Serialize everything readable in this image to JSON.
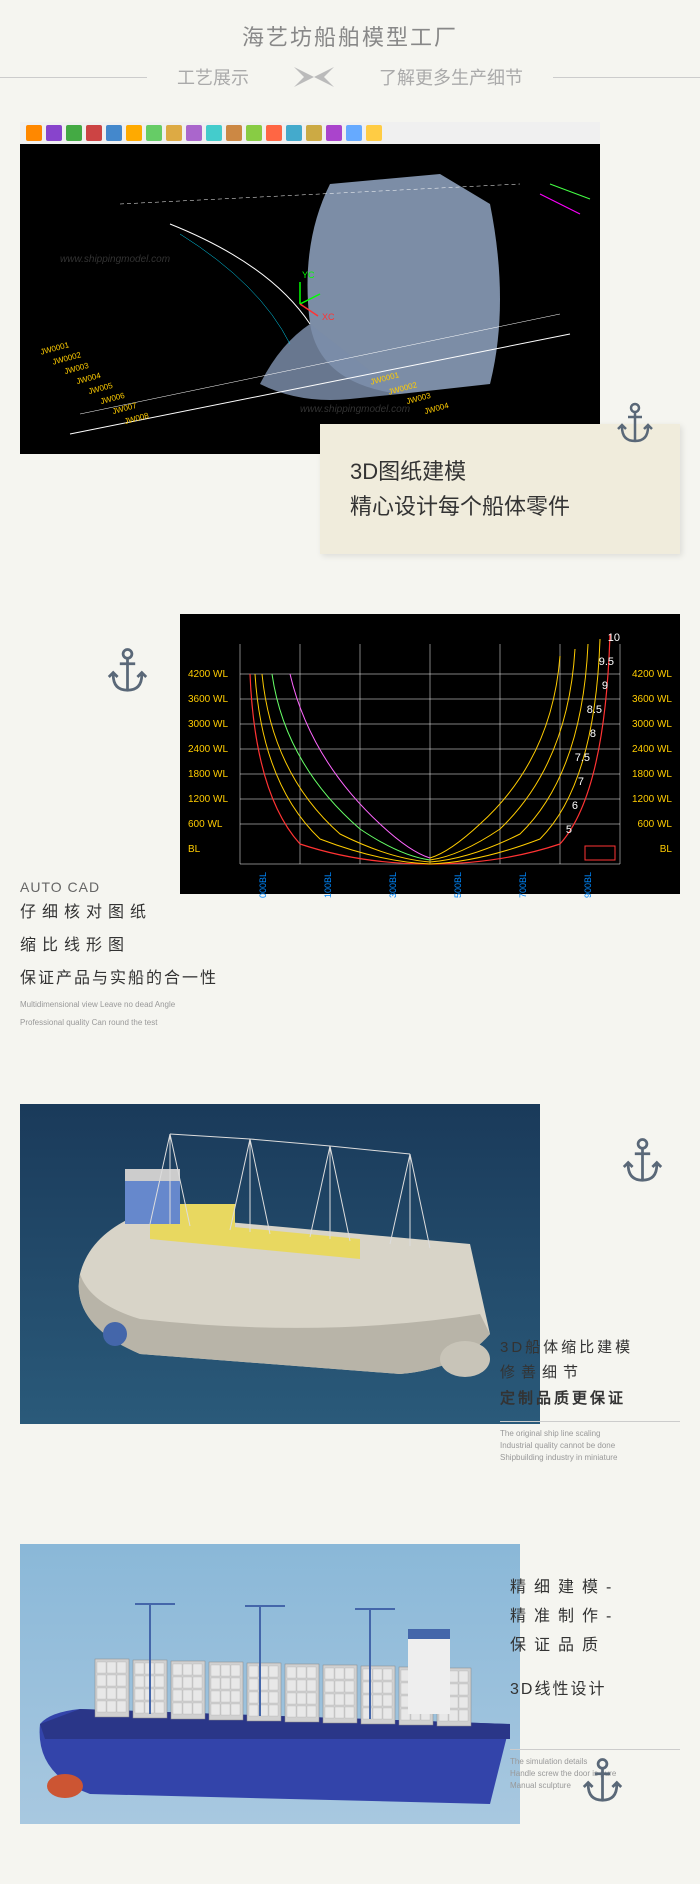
{
  "header": {
    "title": "海艺坊船舶模型工厂",
    "left": "工艺展示",
    "right": "了解更多生产细节"
  },
  "section1": {
    "toolbar_colors": [
      "#ff8800",
      "#8844cc",
      "#44aa44",
      "#cc4444",
      "#4488cc",
      "#ffaa00",
      "#66cc66",
      "#ddaa44",
      "#aa66cc",
      "#44cccc",
      "#cc8844",
      "#88cc44",
      "#ff6644",
      "#44aacc",
      "#ccaa44",
      "#aa44cc",
      "#66aaff",
      "#ffcc44"
    ],
    "watermark": "www.shippingmodel.com",
    "axis_labels": {
      "x": "XC",
      "y": "YC"
    },
    "station_labels": [
      "JW0001",
      "JW0002",
      "JW003",
      "JW004",
      "JW005",
      "JW006",
      "JW007",
      "JW008"
    ],
    "hull_color": "#8a9cb8",
    "card_line1": "3D图纸建模",
    "card_line2": "精心设计每个船体零件"
  },
  "section2": {
    "y_labels": [
      "4200 WL",
      "3600 WL",
      "3000 WL",
      "2400 WL",
      "1800 WL",
      "1200 WL",
      "600 WL",
      "BL"
    ],
    "x_labels": [
      "000BL",
      "100BL",
      "300BL",
      "500BL",
      "700BL",
      "900BL"
    ],
    "top_numbers": [
      "10",
      "9.5",
      "9",
      "8.5",
      "8",
      "7.5",
      "7",
      "6",
      "5"
    ],
    "line_colors": [
      "#ff3333",
      "#ffcc00",
      "#66ff66",
      "#ff66ff",
      "#66ccff"
    ],
    "card_en": "AUTO CAD",
    "card_cn1": "仔细核对图纸",
    "card_cn2": "缩比线形图",
    "card_cn3": "保证产品与实船的合一性",
    "sub1": "Multidimensional view  Leave no dead Angle",
    "sub2": "Professional quality  Can round the test"
  },
  "section3": {
    "hull_color": "#d8d4c8",
    "deck_color": "#e8d860",
    "bridge_color": "#6688cc",
    "card_cn1": "3D船体缩比建模",
    "card_cn2": "修善细节",
    "card_cn3": "定制品质更保证",
    "sub1": "The original ship line scaling",
    "sub2": "Industrial quality cannot be done",
    "sub3": "Shipbuilding industry in miniature"
  },
  "section4": {
    "hull_color": "#3344aa",
    "container_color": "#cccccc",
    "crane_color": "#4466aa",
    "card_cn1": "精细建模-",
    "card_cn2": "精准制作-",
    "card_cn3": "保证品质",
    "card_cn4": "3D线性设计",
    "sub1": "The simulation details",
    "sub2": "Handle screw the door is pure",
    "sub3": "Manual sculpture"
  },
  "anchor_color": "#5a6878"
}
